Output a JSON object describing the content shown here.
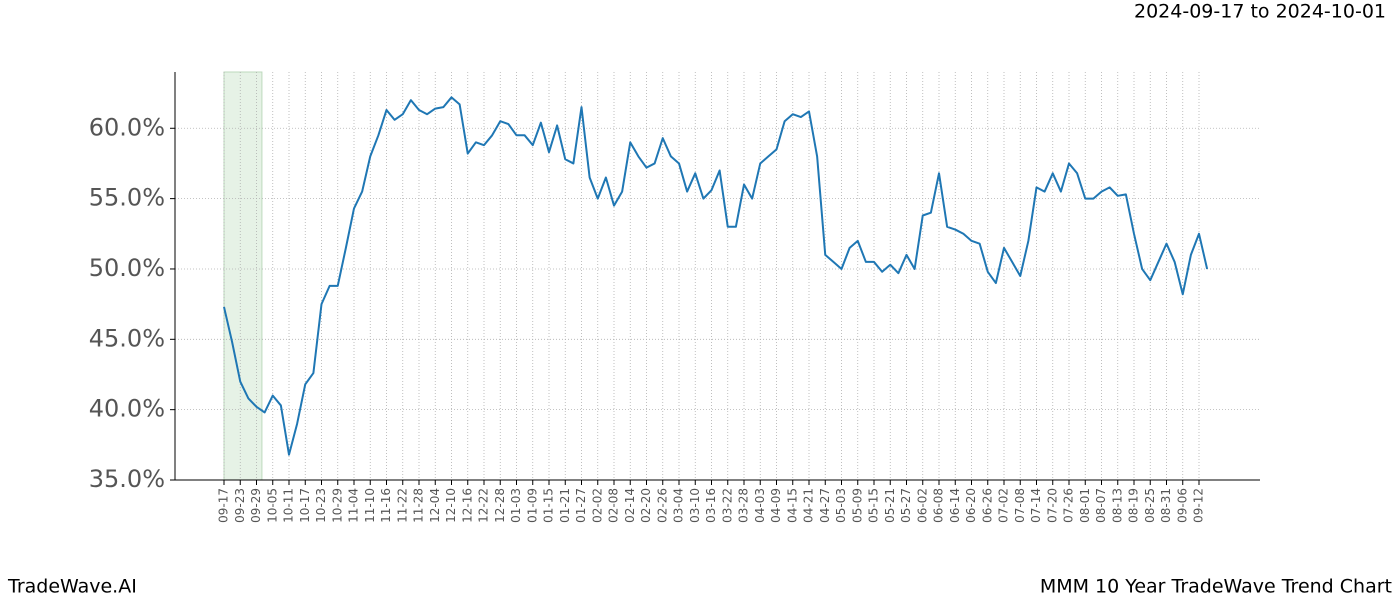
{
  "chart_data": {
    "type": "line",
    "title": "MMM 10 Year TradeWave Trend Chart",
    "subtitle": "2024-09-17 to 2024-10-01",
    "brand": "TradeWave.AI",
    "color": "#1f77b4",
    "highlight_color": "#e6f2e6",
    "grid": true,
    "categories": [
      "09-17",
      null,
      "09-23",
      null,
      "09-29",
      null,
      "10-05",
      null,
      "10-11",
      null,
      "10-17",
      null,
      "10-23",
      null,
      "10-29",
      null,
      "11-04",
      null,
      "11-10",
      null,
      "11-16",
      null,
      "11-22",
      null,
      "11-28",
      null,
      "12-04",
      null,
      "12-10",
      null,
      "12-16",
      null,
      "12-22",
      null,
      "12-28",
      null,
      "01-03",
      null,
      "01-09",
      null,
      "01-15",
      null,
      "01-21",
      null,
      "01-27",
      null,
      "02-02",
      null,
      "02-08",
      null,
      "02-14",
      null,
      "02-20",
      null,
      "02-26",
      null,
      "03-04",
      null,
      "03-10",
      null,
      "03-16",
      null,
      "03-22",
      null,
      "03-28",
      null,
      "04-03",
      null,
      "04-09",
      null,
      "04-15",
      null,
      "04-21",
      null,
      "04-27",
      null,
      "05-03",
      null,
      "05-09",
      null,
      "05-15",
      null,
      "05-21",
      null,
      "05-27",
      null,
      "06-02",
      null,
      "06-08",
      null,
      "06-14",
      null,
      "06-20",
      null,
      "06-26",
      null,
      "07-02",
      null,
      "07-08",
      null,
      "07-14",
      null,
      "07-20",
      null,
      "07-26",
      null,
      "08-01",
      null,
      "08-07",
      null,
      "08-13",
      null,
      "08-19",
      null,
      "08-25",
      null,
      "08-31",
      null,
      "09-06",
      null,
      "09-12",
      null
    ],
    "values": [
      47.3,
      44.8,
      42.0,
      40.8,
      40.2,
      39.8,
      41.0,
      40.3,
      36.8,
      39.0,
      41.8,
      42.6,
      47.5,
      48.8,
      48.8,
      51.5,
      54.3,
      55.5,
      58.0,
      59.5,
      61.3,
      60.6,
      61.0,
      62.0,
      61.3,
      61.0,
      61.4,
      61.5,
      62.2,
      61.7,
      58.2,
      59.0,
      58.8,
      59.5,
      60.5,
      60.3,
      59.5,
      59.5,
      58.8,
      60.4,
      58.3,
      60.2,
      57.8,
      57.5,
      61.5,
      56.5,
      55.0,
      56.5,
      54.5,
      55.5,
      59.0,
      58.0,
      57.2,
      57.5,
      59.3,
      58.0,
      57.5,
      55.5,
      56.8,
      55.0,
      55.6,
      57.0,
      53.0,
      53.0,
      56.0,
      55.0,
      57.5,
      58.0,
      58.5,
      60.5,
      61.0,
      60.8,
      61.2,
      58.0,
      51.0,
      50.5,
      50.0,
      51.5,
      52.0,
      50.5,
      50.5,
      49.8,
      50.3,
      49.7,
      51.0,
      50.0,
      53.8,
      54.0,
      56.8,
      53.0,
      52.8,
      52.5,
      52.0,
      51.8,
      49.8,
      49.0,
      51.5,
      50.5,
      49.5,
      52.0,
      55.8,
      55.5,
      56.8,
      55.5,
      57.5,
      56.8,
      55.0,
      55.0,
      55.5,
      55.8,
      55.2,
      55.3,
      52.5,
      50.0,
      49.2,
      50.5,
      51.8,
      50.5,
      48.2,
      51.0,
      52.5,
      50.0
    ],
    "ylim": [
      35,
      64
    ],
    "yticks": [
      {
        "value": 35,
        "label": "35.0%"
      },
      {
        "value": 40,
        "label": "40.0%"
      },
      {
        "value": 45,
        "label": "45.0%"
      },
      {
        "value": 50,
        "label": "50.0%"
      },
      {
        "value": 55,
        "label": "55.0%"
      },
      {
        "value": 60,
        "label": "60.0%"
      }
    ]
  }
}
